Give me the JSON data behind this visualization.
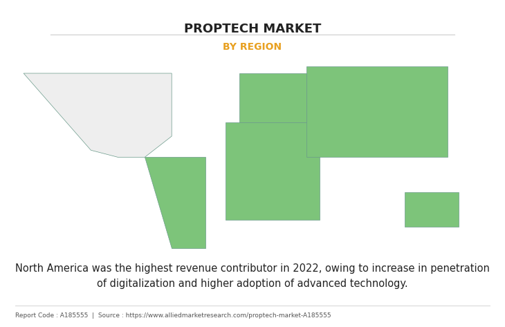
{
  "title": "PROPTECH MARKET",
  "subtitle": "BY REGION",
  "subtitle_color": "#E8A020",
  "title_color": "#222222",
  "body_text": "North America was the highest revenue contributor in 2022, owing to increase in penetration\nof digitalization and higher adoption of advanced technology.",
  "footer_text": "Report Code : A185555  |  Source : https://www.alliedmarketresearch.com/proptech-market-A185555",
  "land_color_highlight": "#7DC47A",
  "land_color_na": "#EEEEEE",
  "ocean_color": "#FFFFFF",
  "border_color": "#6A9A8A",
  "shadow_color": "#AAAAAA",
  "background_color": "#FFFFFF",
  "fig_width": 7.3,
  "fig_height": 4.73,
  "dpi": 100
}
